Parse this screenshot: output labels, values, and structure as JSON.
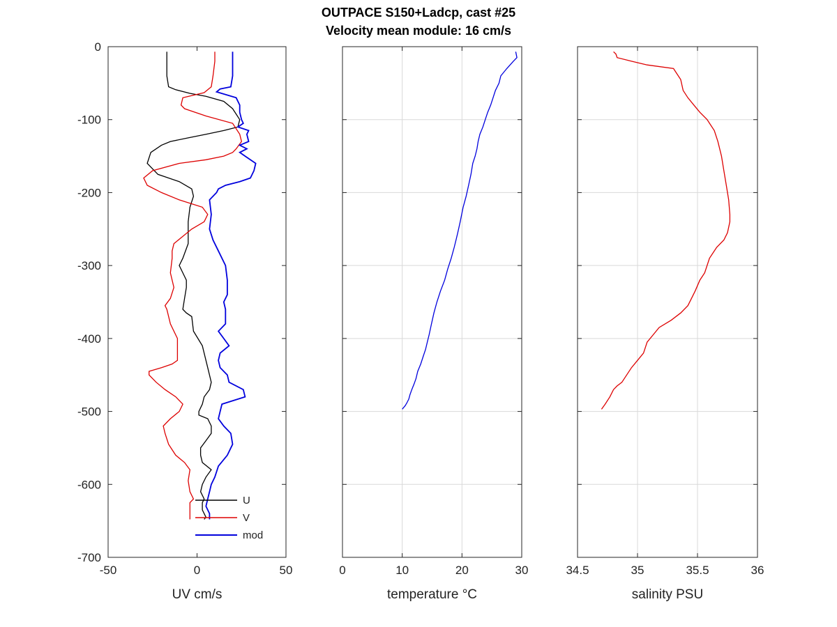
{
  "chart_data": {
    "title": "OUTPACE S150+Ladcp, cast #25",
    "subtitle": "Velocity mean module:  16 cm/s",
    "panels": [
      {
        "type": "line",
        "xlabel": "UV cm/s",
        "xlim": [
          -50,
          50
        ],
        "xticks": [
          -50,
          0,
          50
        ],
        "ylim": [
          -700,
          0
        ],
        "yticks": [
          0,
          -100,
          -200,
          -300,
          -400,
          -500,
          -600,
          -700
        ],
        "grid": false,
        "legend_position": "bottom-right",
        "series": [
          {
            "name": "U",
            "color": "#000000",
            "x": [
              -17,
              -17,
              -17,
              -16,
              -12,
              -4,
              5,
              15,
              20,
              24,
              23,
              15,
              5,
              -5,
              -15,
              -20,
              -26,
              -28,
              -22,
              -10,
              -3,
              -2,
              -4,
              -5,
              -5,
              -8,
              -10,
              -8,
              -6,
              -6,
              -7,
              -8,
              -6,
              -3,
              -2,
              3,
              6,
              8,
              7,
              4,
              3,
              2,
              1,
              1,
              6,
              8,
              8,
              5,
              2,
              2,
              3,
              8,
              5,
              3,
              2,
              4,
              3,
              3,
              3,
              4,
              5,
              4
            ],
            "y": [
              -7,
              -20,
              -40,
              -55,
              -59,
              -64,
              -68,
              -75,
              -85,
              -100,
              -110,
              -115,
              -120,
              -125,
              -130,
              -135,
              -145,
              -160,
              -175,
              -185,
              -195,
              -205,
              -220,
              -240,
              -270,
              -290,
              -300,
              -310,
              -320,
              -330,
              -345,
              -360,
              -365,
              -370,
              -390,
              -410,
              -440,
              -460,
              -470,
              -480,
              -490,
              -495,
              -500,
              -505,
              -510,
              -520,
              -530,
              -540,
              -550,
              -560,
              -570,
              -580,
              -590,
              -600,
              -610,
              -620,
              -625,
              -630,
              -635,
              -640,
              -645,
              -648
            ]
          },
          {
            "name": "V",
            "color": "#dd0000",
            "x": [
              10,
              10,
              9,
              8,
              4,
              -8,
              -9,
              -7,
              5,
              20,
              24,
              25,
              22,
              20,
              15,
              5,
              -10,
              -25,
              -30,
              -28,
              -20,
              -10,
              3,
              6,
              4,
              -3,
              -8,
              -13,
              -14,
              -14,
              -15,
              -13,
              -15,
              -18,
              -17,
              -15,
              -11,
              -11,
              -11,
              -14,
              -20,
              -27,
              -27,
              -23,
              -18,
              -12,
              -8,
              -10,
              -15,
              -19,
              -18,
              -16,
              -12,
              -7,
              -4,
              -5,
              -4,
              -2,
              -4,
              -4,
              -4,
              -4
            ],
            "y": [
              -7,
              -20,
              -40,
              -55,
              -63,
              -70,
              -80,
              -85,
              -95,
              -105,
              -120,
              -130,
              -140,
              -145,
              -150,
              -155,
              -160,
              -170,
              -180,
              -190,
              -200,
              -210,
              -220,
              -230,
              -240,
              -250,
              -260,
              -270,
              -280,
              -290,
              -310,
              -330,
              -345,
              -355,
              -360,
              -380,
              -400,
              -420,
              -430,
              -435,
              -440,
              -445,
              -450,
              -460,
              -470,
              -480,
              -490,
              -500,
              -510,
              -520,
              -530,
              -545,
              -560,
              -570,
              -580,
              -595,
              -610,
              -620,
              -625,
              -630,
              -640,
              -648
            ]
          },
          {
            "name": "mod",
            "color": "#0000dd",
            "x": [
              20,
              20,
              20,
              19,
              13,
              11,
              22,
              24,
              24,
              25,
              26,
              23,
              29,
              28,
              29,
              24,
              28,
              24,
              27,
              33,
              32,
              30,
              24,
              16,
              12,
              11,
              7,
              8,
              7,
              9,
              12,
              16,
              17,
              17,
              15,
              16,
              16,
              16,
              12,
              15,
              18,
              13,
              12,
              13,
              17,
              18,
              26,
              27,
              14,
              13,
              12,
              15,
              19,
              20,
              17,
              12,
              10,
              8,
              7,
              6,
              5,
              7,
              7
            ],
            "y": [
              -7,
              -20,
              -40,
              -55,
              -58,
              -62,
              -70,
              -80,
              -90,
              -100,
              -105,
              -110,
              -115,
              -120,
              -130,
              -135,
              -140,
              -145,
              -150,
              -160,
              -170,
              -180,
              -185,
              -190,
              -195,
              -200,
              -210,
              -230,
              -250,
              -265,
              -280,
              -300,
              -320,
              -340,
              -350,
              -360,
              -370,
              -380,
              -390,
              -400,
              -410,
              -420,
              -430,
              -440,
              -450,
              -460,
              -470,
              -480,
              -490,
              -500,
              -510,
              -520,
              -530,
              -545,
              -560,
              -575,
              -590,
              -600,
              -610,
              -620,
              -630,
              -640,
              -648
            ]
          }
        ]
      },
      {
        "type": "line",
        "xlabel": "temperature °C",
        "xlim": [
          0,
          30
        ],
        "xticks": [
          0,
          10,
          20,
          30
        ],
        "ylim": [
          -700,
          0
        ],
        "grid": true,
        "series": [
          {
            "name": "",
            "color": "#0000dd",
            "x": [
              29.0,
              29.2,
              28.6,
              27.5,
              26.5,
              26.2,
              25.6,
              25.2,
              24.8,
              24.3,
              23.9,
              23.5,
              23.0,
              22.7,
              22.5,
              22.2,
              21.8,
              21.5,
              21.1,
              20.7,
              20.2,
              19.7,
              19.3,
              19.0,
              18.7,
              18.2,
              17.6,
              17.1,
              16.4,
              15.8,
              15.3,
              14.9,
              14.5,
              14.2,
              13.9,
              13.5,
              13.1,
              12.6,
              12.3,
              12.0,
              11.6,
              11.3,
              11.1,
              10.8,
              10.5,
              10.2,
              10.0
            ],
            "y": [
              -7,
              -15,
              -20,
              -30,
              -40,
              -50,
              -60,
              -70,
              -80,
              -90,
              -100,
              -110,
              -120,
              -130,
              -140,
              -150,
              -160,
              -175,
              -190,
              -205,
              -220,
              -240,
              -255,
              -265,
              -275,
              -290,
              -305,
              -320,
              -335,
              -350,
              -365,
              -380,
              -395,
              -405,
              -415,
              -425,
              -435,
              -445,
              -455,
              -462,
              -470,
              -477,
              -483,
              -488,
              -492,
              -495,
              -497
            ]
          }
        ]
      },
      {
        "type": "line",
        "xlabel": "salinity PSU",
        "xlim": [
          34.5,
          36
        ],
        "xticks": [
          34.5,
          35,
          35.5,
          36
        ],
        "ylim": [
          -700,
          0
        ],
        "grid": true,
        "series": [
          {
            "name": "",
            "color": "#dd0000",
            "x": [
              34.8,
              34.82,
              34.83,
              34.95,
              35.08,
              35.3,
              35.32,
              35.36,
              35.38,
              35.42,
              35.47,
              35.52,
              35.58,
              35.64,
              35.67,
              35.7,
              35.72,
              35.74,
              35.76,
              35.77,
              35.77,
              35.75,
              35.72,
              35.66,
              35.6,
              35.56,
              35.52,
              35.48,
              35.45,
              35.42,
              35.36,
              35.28,
              35.18,
              35.13,
              35.08,
              35.05,
              35.0,
              34.95,
              34.91,
              34.87,
              34.83,
              34.8,
              34.77,
              34.73,
              34.7
            ],
            "y": [
              -7,
              -10,
              -15,
              -20,
              -25,
              -30,
              -35,
              -45,
              -60,
              -70,
              -80,
              -90,
              -100,
              -115,
              -130,
              -150,
              -170,
              -190,
              -210,
              -230,
              -240,
              -255,
              -265,
              -275,
              -290,
              -310,
              -320,
              -335,
              -345,
              -355,
              -365,
              -375,
              -385,
              -395,
              -405,
              -420,
              -430,
              -440,
              -450,
              -460,
              -465,
              -470,
              -480,
              -490,
              -497
            ]
          }
        ]
      }
    ]
  },
  "colors": {
    "axis": "#262626",
    "grid": "#d9d9d9"
  }
}
